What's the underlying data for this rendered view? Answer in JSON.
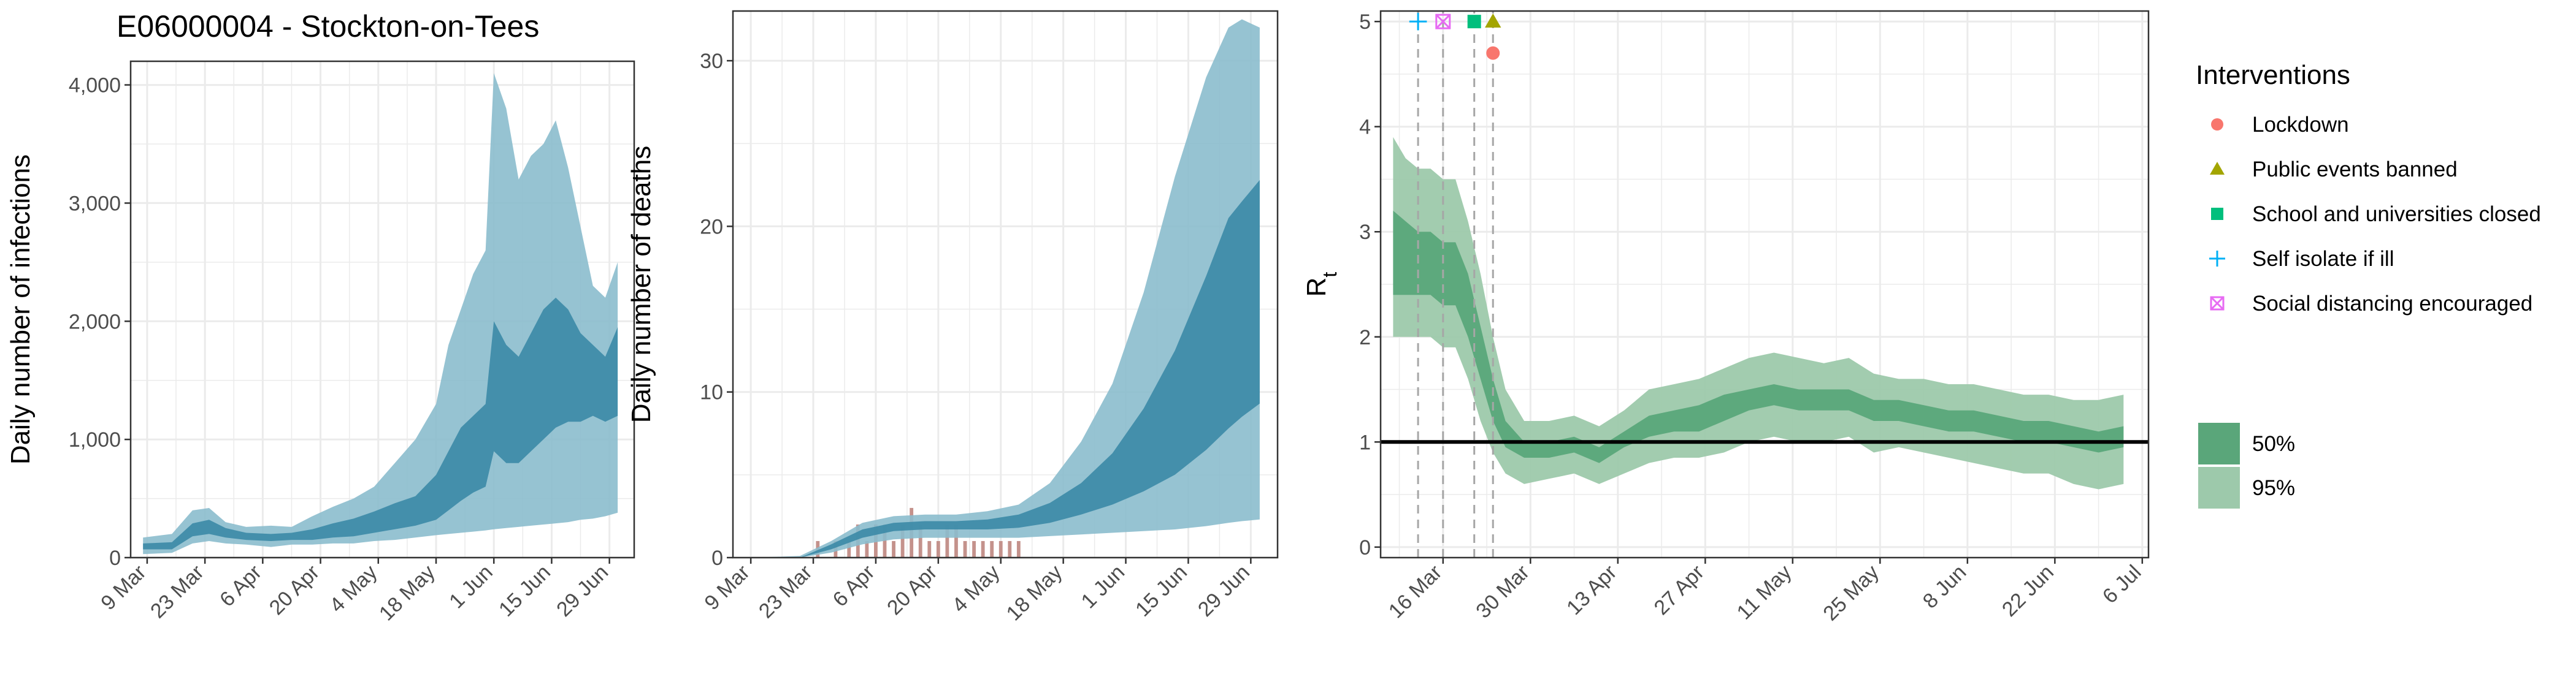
{
  "page": {
    "title": "E06000004 - Stockton-on-Tees"
  },
  "colors": {
    "band_light": "#8bbccd",
    "band_dark": "#3b8aa6",
    "line": "#3a93b8",
    "bars": "#c4928c",
    "rt_light": "#9dc9ab",
    "rt_dark": "#5aa67a",
    "lockdown": "#f8766d",
    "public_events": "#a3a500",
    "school": "#00bf7d",
    "self_isolate": "#00b0f6",
    "social_distancing": "#e76bf3",
    "grid": "#ebebeb",
    "axis_text": "#4d4d4d"
  },
  "legend": {
    "interventions_title": "Interventions",
    "items": [
      {
        "label": "Lockdown",
        "shape": "circle",
        "color_key": "lockdown"
      },
      {
        "label": "Public events banned",
        "shape": "triangle",
        "color_key": "public_events"
      },
      {
        "label": "School and universities closed",
        "shape": "square",
        "color_key": "school"
      },
      {
        "label": "Self isolate if ill",
        "shape": "plus",
        "color_key": "self_isolate"
      },
      {
        "label": "Social distancing encouraged",
        "shape": "boxcross",
        "color_key": "social_distancing"
      }
    ],
    "ci": [
      {
        "label": "50%",
        "color_key": "rt_dark"
      },
      {
        "label": "95%",
        "color_key": "rt_light"
      }
    ]
  },
  "chart_data": [
    {
      "type": "area",
      "title": "E06000004 - Stockton-on-Tees",
      "xlabel": "",
      "ylabel": "Daily number of infections",
      "ylim": [
        0,
        4200
      ],
      "yticks": [
        0,
        1000,
        2000,
        3000,
        4000
      ],
      "ytick_labels": [
        "0",
        "1,000",
        "2,000",
        "3,000",
        "4,000"
      ],
      "xlim": [
        "2020-03-05",
        "2020-07-05"
      ],
      "xticks": [
        "2020-03-09",
        "2020-03-23",
        "2020-04-06",
        "2020-04-20",
        "2020-05-04",
        "2020-05-18",
        "2020-06-01",
        "2020-06-15",
        "2020-06-29"
      ],
      "xtick_labels": [
        "9 Mar",
        "23 Mar",
        "6 Apr",
        "20 Apr",
        "4 May",
        "18 May",
        "1 Jun",
        "15 Jun",
        "29 Jun"
      ],
      "x": [
        "2020-03-08",
        "2020-03-15",
        "2020-03-20",
        "2020-03-24",
        "2020-03-28",
        "2020-04-02",
        "2020-04-08",
        "2020-04-13",
        "2020-04-18",
        "2020-04-23",
        "2020-04-28",
        "2020-05-03",
        "2020-05-08",
        "2020-05-13",
        "2020-05-18",
        "2020-05-21",
        "2020-05-24",
        "2020-05-27",
        "2020-05-30",
        "2020-06-01",
        "2020-06-04",
        "2020-06-07",
        "2020-06-10",
        "2020-06-13",
        "2020-06-16",
        "2020-06-19",
        "2020-06-22",
        "2020-06-25",
        "2020-06-28",
        "2020-07-01"
      ],
      "series": [
        {
          "name": "95%",
          "lower": [
            30,
            40,
            120,
            140,
            120,
            110,
            90,
            110,
            110,
            120,
            120,
            140,
            150,
            170,
            190,
            200,
            210,
            220,
            230,
            240,
            250,
            260,
            270,
            280,
            290,
            300,
            320,
            330,
            350,
            380
          ],
          "upper": [
            170,
            200,
            400,
            420,
            300,
            260,
            270,
            260,
            350,
            430,
            500,
            600,
            800,
            1000,
            1300,
            1800,
            2100,
            2400,
            2600,
            4100,
            3800,
            3200,
            3400,
            3500,
            3700,
            3300,
            2800,
            2300,
            2200,
            2500
          ]
        },
        {
          "name": "50%",
          "lower": [
            70,
            70,
            180,
            200,
            170,
            150,
            140,
            150,
            150,
            170,
            180,
            210,
            240,
            270,
            320,
            400,
            480,
            550,
            600,
            900,
            800,
            800,
            900,
            1000,
            1100,
            1150,
            1150,
            1200,
            1150,
            1200
          ],
          "upper": [
            120,
            130,
            290,
            320,
            250,
            210,
            200,
            210,
            240,
            290,
            330,
            390,
            460,
            520,
            700,
            900,
            1100,
            1200,
            1300,
            2000,
            1800,
            1700,
            1900,
            2100,
            2200,
            2100,
            1900,
            1800,
            1700,
            1950
          ]
        }
      ]
    },
    {
      "type": "area",
      "title": "",
      "xlabel": "",
      "ylabel": "Daily number of deaths",
      "ylim": [
        0,
        33
      ],
      "yticks": [
        0,
        10,
        20,
        30
      ],
      "ytick_labels": [
        "0",
        "10",
        "20",
        "30"
      ],
      "xlim": [
        "2020-03-05",
        "2020-07-05"
      ],
      "xticks": [
        "2020-03-09",
        "2020-03-23",
        "2020-04-06",
        "2020-04-20",
        "2020-05-04",
        "2020-05-18",
        "2020-06-01",
        "2020-06-15",
        "2020-06-29"
      ],
      "xtick_labels": [
        "9 Mar",
        "23 Mar",
        "6 Apr",
        "20 Apr",
        "4 May",
        "18 May",
        "1 Jun",
        "15 Jun",
        "29 Jun"
      ],
      "x": [
        "2020-03-09",
        "2020-03-20",
        "2020-03-27",
        "2020-04-03",
        "2020-04-10",
        "2020-04-17",
        "2020-04-24",
        "2020-05-01",
        "2020-05-08",
        "2020-05-15",
        "2020-05-22",
        "2020-05-29",
        "2020-06-05",
        "2020-06-12",
        "2020-06-19",
        "2020-06-24",
        "2020-06-27",
        "2020-07-01"
      ],
      "series": [
        {
          "name": "95%",
          "lower": [
            0,
            0,
            0.3,
            0.8,
            1.1,
            1.2,
            1.2,
            1.2,
            1.2,
            1.3,
            1.4,
            1.5,
            1.6,
            1.7,
            1.9,
            2.1,
            2.2,
            2.3
          ],
          "upper": [
            0,
            0.1,
            1.0,
            2.1,
            2.5,
            2.6,
            2.6,
            2.8,
            3.2,
            4.5,
            7,
            10.5,
            16,
            23,
            29,
            32,
            32.5,
            32
          ]
        },
        {
          "name": "50%",
          "lower": [
            0,
            0,
            0.5,
            1.2,
            1.6,
            1.7,
            1.7,
            1.7,
            1.8,
            2.1,
            2.6,
            3.2,
            4,
            5,
            6.5,
            7.8,
            8.5,
            9.3
          ],
          "upper": [
            0,
            0,
            0.8,
            1.7,
            2.1,
            2.2,
            2.2,
            2.3,
            2.6,
            3.3,
            4.5,
            6.3,
            9,
            12.5,
            17,
            20.5,
            21.5,
            22.8
          ]
        }
      ],
      "bars": {
        "name": "observed deaths",
        "x": [
          "2020-03-24",
          "2020-03-28",
          "2020-03-31",
          "2020-04-02",
          "2020-04-04",
          "2020-04-06",
          "2020-04-08",
          "2020-04-10",
          "2020-04-12",
          "2020-04-14",
          "2020-04-16",
          "2020-04-18",
          "2020-04-20",
          "2020-04-22",
          "2020-04-24",
          "2020-04-26",
          "2020-04-28",
          "2020-04-30",
          "2020-05-02",
          "2020-05-04",
          "2020-05-06",
          "2020-05-08"
        ],
        "values": [
          1,
          1,
          1,
          2,
          1,
          2,
          2,
          1,
          2,
          3,
          2,
          1,
          1,
          2,
          2,
          1,
          1,
          1,
          1,
          1,
          1,
          1
        ]
      }
    },
    {
      "type": "area",
      "title": "",
      "xlabel": "",
      "ylabel": "Rt",
      "ylim": [
        -0.1,
        5.1
      ],
      "yticks": [
        0,
        1,
        2,
        3,
        4,
        5
      ],
      "ytick_labels": [
        "0",
        "1",
        "2",
        "3",
        "4",
        "5"
      ],
      "xlim": [
        "2020-03-06",
        "2020-07-07"
      ],
      "xticks": [
        "2020-03-16",
        "2020-03-30",
        "2020-04-13",
        "2020-04-27",
        "2020-05-11",
        "2020-05-25",
        "2020-06-08",
        "2020-06-22",
        "2020-07-06"
      ],
      "xtick_labels": [
        "16 Mar",
        "30 Mar",
        "13 Apr",
        "27 Apr",
        "11 May",
        "25 May",
        "8 Jun",
        "22 Jun",
        "6 Jul"
      ],
      "reference_line": 1,
      "x": [
        "2020-03-08",
        "2020-03-10",
        "2020-03-12",
        "2020-03-14",
        "2020-03-16",
        "2020-03-18",
        "2020-03-20",
        "2020-03-22",
        "2020-03-24",
        "2020-03-26",
        "2020-03-29",
        "2020-04-02",
        "2020-04-06",
        "2020-04-10",
        "2020-04-14",
        "2020-04-18",
        "2020-04-22",
        "2020-04-26",
        "2020-04-30",
        "2020-05-04",
        "2020-05-08",
        "2020-05-12",
        "2020-05-16",
        "2020-05-20",
        "2020-05-24",
        "2020-05-28",
        "2020-06-01",
        "2020-06-05",
        "2020-06-09",
        "2020-06-13",
        "2020-06-17",
        "2020-06-21",
        "2020-06-25",
        "2020-06-29",
        "2020-07-03"
      ],
      "series": [
        {
          "name": "95%",
          "lower": [
            2.0,
            2.0,
            2.0,
            2.0,
            1.9,
            1.9,
            1.6,
            1.2,
            0.9,
            0.7,
            0.6,
            0.65,
            0.7,
            0.6,
            0.7,
            0.8,
            0.85,
            0.85,
            0.9,
            1.0,
            1.05,
            1.0,
            1.0,
            1.05,
            0.9,
            0.95,
            0.9,
            0.85,
            0.8,
            0.75,
            0.7,
            0.7,
            0.6,
            0.55,
            0.6
          ],
          "upper": [
            3.9,
            3.7,
            3.6,
            3.6,
            3.5,
            3.5,
            3.1,
            2.6,
            2.0,
            1.5,
            1.2,
            1.2,
            1.25,
            1.15,
            1.3,
            1.5,
            1.55,
            1.6,
            1.7,
            1.8,
            1.85,
            1.8,
            1.75,
            1.8,
            1.65,
            1.6,
            1.6,
            1.55,
            1.55,
            1.5,
            1.45,
            1.45,
            1.4,
            1.4,
            1.45
          ]
        },
        {
          "name": "50%",
          "lower": [
            2.4,
            2.4,
            2.4,
            2.4,
            2.3,
            2.3,
            2.0,
            1.6,
            1.2,
            0.95,
            0.85,
            0.85,
            0.9,
            0.8,
            0.95,
            1.05,
            1.1,
            1.1,
            1.2,
            1.3,
            1.35,
            1.3,
            1.3,
            1.3,
            1.2,
            1.2,
            1.15,
            1.1,
            1.1,
            1.05,
            1.0,
            1.0,
            0.95,
            0.9,
            0.95
          ],
          "upper": [
            3.2,
            3.1,
            3.0,
            3.0,
            2.9,
            2.9,
            2.6,
            2.1,
            1.6,
            1.2,
            1.0,
            1.0,
            1.05,
            0.95,
            1.1,
            1.25,
            1.3,
            1.35,
            1.45,
            1.5,
            1.55,
            1.5,
            1.5,
            1.5,
            1.4,
            1.4,
            1.35,
            1.3,
            1.3,
            1.25,
            1.2,
            1.2,
            1.15,
            1.1,
            1.15
          ]
        }
      ],
      "interventions": [
        {
          "name": "Self isolate if ill",
          "x": "2020-03-12",
          "y": 5.0,
          "shape": "plus",
          "color_key": "self_isolate"
        },
        {
          "name": "Social distancing encouraged",
          "x": "2020-03-16",
          "y": 5.0,
          "shape": "boxcross",
          "color_key": "social_distancing"
        },
        {
          "name": "School and universities closed",
          "x": "2020-03-21",
          "y": 5.0,
          "shape": "square",
          "color_key": "school"
        },
        {
          "name": "Public events banned",
          "x": "2020-03-24",
          "y": 5.0,
          "shape": "triangle",
          "color_key": "public_events"
        },
        {
          "name": "Lockdown",
          "x": "2020-03-24",
          "y": 4.7,
          "shape": "circle",
          "color_key": "lockdown"
        }
      ]
    }
  ]
}
